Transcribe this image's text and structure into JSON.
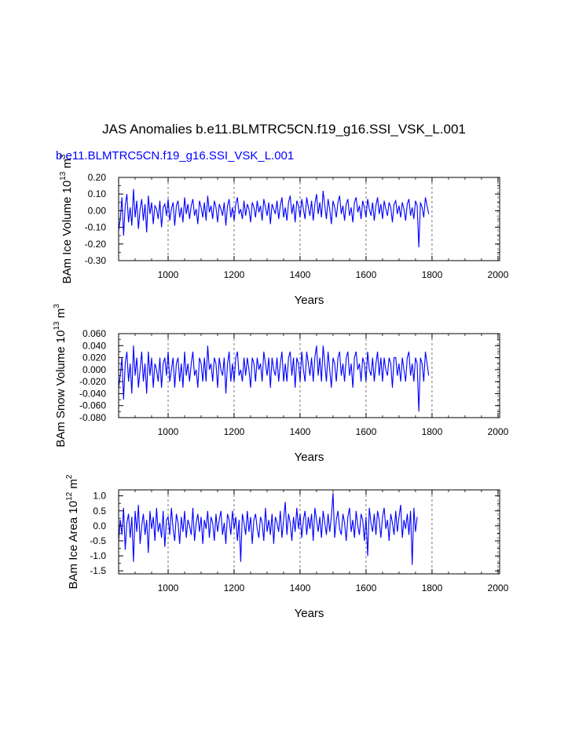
{
  "title": "JAS Anomalies b.e11.BLMTRC5CN.f19_g16.SSI_VSK_L.001",
  "case_label": "b.e11.BLMTRC5CN.f19_g16.SSI_VSK_L.001",
  "colors": {
    "series": "#0000ff",
    "axis": "#000000",
    "grid": "#555555",
    "case_label": "#0000ff"
  },
  "chart_data": [
    {
      "type": "line",
      "xlabel": "Years",
      "ylabel": "BAm Ice Volume 10^13 m^3",
      "ylabel_base": "BAm Ice Volume 10",
      "ylabel_exp1": "13",
      "ylabel_unit": " m",
      "ylabel_exp2": "3",
      "xlim": [
        850,
        2005
      ],
      "ylim": [
        -0.3,
        0.2
      ],
      "xticks": [
        1000,
        1200,
        1400,
        1600,
        1800,
        2000
      ],
      "xtick_labels": [
        "1000",
        "1200",
        "1400",
        "1600",
        "1800",
        "2000"
      ],
      "yticks": [
        -0.3,
        -0.2,
        -0.1,
        0.0,
        0.1,
        0.2
      ],
      "ytick_labels": [
        "-0.30",
        "-0.20",
        "-0.10",
        "0.00",
        "0.10",
        "0.20"
      ],
      "vgrid": [
        1000,
        1200,
        1400,
        1600,
        1800,
        2000
      ],
      "series": [
        {
          "x_start": 850,
          "x_step": 5,
          "values": [
            -0.12,
            -0.05,
            0.08,
            -0.15,
            0.03,
            0.1,
            -0.07,
            0.02,
            -0.09,
            0.13,
            -0.04,
            0.06,
            -0.11,
            0.01,
            0.07,
            -0.06,
            0.04,
            -0.13,
            0.09,
            -0.02,
            0.05,
            -0.08,
            0.03,
            0.01,
            -0.05,
            0.06,
            -0.1,
            0.02,
            0.04,
            -0.03,
            0.07,
            -0.06,
            0.01,
            0.05,
            -0.09,
            0.03,
            0.06,
            -0.04,
            0.02,
            -0.07,
            0.08,
            -0.02,
            0.04,
            -0.05,
            0.03,
            0.07,
            -0.03,
            0.01,
            -0.08,
            0.06,
            0.02,
            -0.04,
            0.05,
            -0.06,
            0.09,
            -0.01,
            0.03,
            -0.05,
            0.06,
            0.02,
            -0.07,
            0.04,
            0.01,
            -0.03,
            0.05,
            -0.09,
            0.03,
            0.07,
            -0.04,
            0.02,
            -0.06,
            0.04,
            0.08,
            -0.02,
            0.01,
            -0.05,
            0.06,
            -0.03,
            0.04,
            0.01,
            -0.07,
            0.05,
            0.02,
            -0.04,
            0.06,
            -0.01,
            0.03,
            -0.06,
            0.07,
            0.02,
            -0.03,
            0.05,
            -0.08,
            0.04,
            0.01,
            -0.02,
            0.06,
            -0.05,
            0.03,
            0.08,
            -0.04,
            0.02,
            -0.06,
            0.05,
            0.09,
            -0.02,
            0.04,
            -0.07,
            0.06,
            0.03,
            -0.04,
            0.07,
            0.01,
            -0.05,
            0.08,
            0.02,
            -0.03,
            0.06,
            -0.06,
            0.04,
            0.1,
            -0.02,
            0.05,
            -0.04,
            0.12,
            0.03,
            -0.05,
            0.07,
            0.01,
            -0.08,
            0.06,
            0.02,
            -0.04,
            0.05,
            0.09,
            -0.02,
            0.03,
            -0.06,
            0.04,
            0.07,
            -0.03,
            0.02,
            -0.07,
            0.05,
            0.08,
            -0.01,
            0.03,
            -0.05,
            0.06,
            0.02,
            -0.04,
            0.07,
            0.01,
            -0.03,
            0.05,
            -0.06,
            0.03,
            0.08,
            -0.02,
            0.04,
            -0.05,
            0.06,
            0.01,
            -0.03,
            0.05,
            0.02,
            -0.07,
            0.04,
            0.06,
            -0.02,
            0.03,
            -0.04,
            0.05,
            0.01,
            -0.06,
            0.04,
            0.07,
            -0.03,
            0.02,
            -0.05,
            0.06,
            0.03,
            -0.22,
            0.05,
            0.02,
            -0.04,
            0.08,
            0.03,
            -0.02
          ]
        }
      ]
    },
    {
      "type": "line",
      "xlabel": "Years",
      "ylabel": "BAm Snow Volume 10^13 m^3",
      "ylabel_base": "BAm Snow Volume 10",
      "ylabel_exp1": "13",
      "ylabel_unit": " m",
      "ylabel_exp2": "3",
      "xlim": [
        850,
        2005
      ],
      "ylim": [
        -0.08,
        0.06
      ],
      "xticks": [
        1000,
        1200,
        1400,
        1600,
        1800,
        2000
      ],
      "xtick_labels": [
        "1000",
        "1200",
        "1400",
        "1600",
        "1800",
        "2000"
      ],
      "yticks": [
        -0.08,
        -0.06,
        -0.04,
        -0.02,
        0.0,
        0.02,
        0.04,
        0.06
      ],
      "ytick_labels": [
        "-0.080",
        "-0.060",
        "-0.040",
        "-0.020",
        "0.000",
        "0.020",
        "0.040",
        "0.060"
      ],
      "vgrid": [
        1000,
        1200,
        1400,
        1600,
        1800,
        2000
      ],
      "series": [
        {
          "x_start": 850,
          "x_step": 5,
          "values": [
            -0.03,
            -0.01,
            0.02,
            -0.05,
            0.01,
            0.03,
            -0.02,
            0.01,
            -0.04,
            0.04,
            -0.01,
            0.02,
            -0.03,
            0.0,
            0.03,
            -0.02,
            0.01,
            -0.04,
            0.03,
            -0.01,
            0.02,
            -0.03,
            0.01,
            0.0,
            -0.02,
            0.02,
            -0.03,
            0.01,
            0.02,
            -0.01,
            0.03,
            -0.02,
            0.0,
            0.02,
            -0.03,
            0.01,
            0.02,
            -0.02,
            0.01,
            -0.03,
            0.03,
            -0.01,
            0.01,
            -0.02,
            0.01,
            0.03,
            -0.01,
            0.0,
            -0.03,
            0.02,
            0.01,
            -0.02,
            0.02,
            -0.02,
            0.04,
            0.0,
            0.01,
            -0.02,
            0.02,
            0.01,
            -0.03,
            0.02,
            0.0,
            -0.01,
            0.02,
            -0.04,
            0.01,
            0.03,
            -0.02,
            0.01,
            -0.02,
            0.02,
            0.03,
            -0.01,
            0.0,
            -0.02,
            0.02,
            -0.01,
            0.02,
            0.0,
            -0.03,
            0.02,
            0.01,
            -0.02,
            0.02,
            0.0,
            0.01,
            -0.02,
            0.03,
            0.01,
            -0.01,
            0.02,
            -0.03,
            0.02,
            0.0,
            -0.01,
            0.02,
            -0.02,
            0.01,
            0.03,
            -0.02,
            0.01,
            -0.02,
            0.02,
            0.03,
            -0.01,
            0.02,
            -0.03,
            0.02,
            0.01,
            -0.02,
            0.03,
            0.0,
            -0.02,
            0.03,
            0.01,
            -0.01,
            0.02,
            -0.02,
            0.02,
            0.04,
            -0.01,
            0.02,
            -0.02,
            0.04,
            0.01,
            -0.02,
            0.03,
            0.0,
            -0.03,
            0.02,
            0.01,
            -0.02,
            0.02,
            0.03,
            -0.01,
            0.01,
            -0.02,
            0.02,
            0.03,
            -0.01,
            0.01,
            -0.03,
            0.02,
            0.03,
            0.0,
            0.01,
            -0.02,
            0.02,
            0.01,
            -0.02,
            0.03,
            0.0,
            -0.01,
            0.02,
            -0.02,
            0.01,
            0.03,
            -0.01,
            0.02,
            -0.02,
            0.02,
            0.0,
            -0.01,
            0.02,
            0.01,
            -0.03,
            0.02,
            0.02,
            -0.01,
            0.01,
            -0.02,
            0.02,
            0.0,
            -0.02,
            0.02,
            0.03,
            -0.01,
            0.01,
            -0.02,
            0.02,
            0.01,
            -0.07,
            0.02,
            0.01,
            -0.02,
            0.03,
            0.01,
            -0.01
          ]
        }
      ]
    },
    {
      "type": "line",
      "xlabel": "Years",
      "ylabel": "BAm Ice Area 10^12 m^2",
      "ylabel_base": "BAm Ice Area 10",
      "ylabel_exp1": "12",
      "ylabel_unit": " m",
      "ylabel_exp2": "2",
      "xlim": [
        850,
        2005
      ],
      "ylim": [
        -1.6,
        1.2
      ],
      "xticks": [
        1000,
        1200,
        1400,
        1600,
        1800,
        2000
      ],
      "xtick_labels": [
        "1000",
        "1200",
        "1400",
        "1600",
        "1800",
        "2000"
      ],
      "yticks": [
        -1.5,
        -1.0,
        -0.5,
        0.0,
        0.5,
        1.0
      ],
      "ytick_labels": [
        "-1.5",
        "-1.0",
        "-0.5",
        "0.0",
        "0.5",
        "1.0"
      ],
      "vgrid": [
        1000,
        1200,
        1400,
        1600,
        1800,
        2000
      ],
      "series": [
        {
          "x_start": 850,
          "x_step": 5,
          "values": [
            -0.5,
            0.2,
            -0.3,
            0.6,
            -0.8,
            0.1,
            0.4,
            -0.4,
            0.3,
            -1.2,
            0.5,
            -0.2,
            0.7,
            -0.6,
            0.0,
            0.4,
            -0.3,
            0.2,
            -0.9,
            0.5,
            -0.1,
            0.3,
            -0.5,
            0.6,
            -0.2,
            0.1,
            -0.4,
            0.5,
            -0.7,
            0.2,
            0.3,
            -0.3,
            0.6,
            -0.1,
            -0.5,
            0.4,
            0.1,
            -0.6,
            0.3,
            -0.2,
            0.5,
            -0.4,
            0.2,
            0.0,
            -0.3,
            0.6,
            -0.5,
            0.1,
            0.4,
            -0.2,
            0.3,
            -0.6,
            0.2,
            -0.1,
            0.5,
            -0.4,
            0.3,
            0.1,
            -0.5,
            0.4,
            -0.2,
            0.2,
            0.5,
            -0.3,
            0.1,
            -0.6,
            0.4,
            0.2,
            -0.3,
            0.5,
            -0.1,
            0.3,
            -0.5,
            0.2,
            -1.2,
            0.4,
            0.1,
            -0.3,
            0.5,
            -0.2,
            0.3,
            -0.6,
            0.2,
            0.4,
            -0.1,
            -0.4,
            0.3,
            0.1,
            -0.5,
            0.6,
            -0.2,
            0.2,
            -0.3,
            0.4,
            -0.6,
            0.3,
            0.1,
            -0.2,
            0.5,
            -0.4,
            0.2,
            0.8,
            -0.3,
            0.4,
            0.1,
            -0.5,
            0.3,
            -0.2,
            0.6,
            -0.1,
            0.4,
            -0.4,
            0.2,
            0.5,
            -0.3,
            0.3,
            -0.1,
            0.4,
            -0.5,
            0.6,
            0.2,
            -0.2,
            0.3,
            -0.4,
            0.5,
            0.1,
            -0.3,
            0.4,
            -0.2,
            0.3,
            1.1,
            -0.4,
            0.2,
            0.5,
            -0.1,
            -0.3,
            0.4,
            0.1,
            -0.5,
            0.3,
            0.6,
            -0.2,
            0.2,
            -0.4,
            0.5,
            0.0,
            -0.3,
            0.4,
            0.2,
            -0.5,
            0.3,
            -1.0,
            0.6,
            0.1,
            -0.2,
            0.4,
            -0.3,
            0.5,
            0.2,
            -0.4,
            0.3,
            0.6,
            -0.1,
            0.2,
            -0.5,
            0.4,
            0.1,
            -0.3,
            0.5,
            -0.2,
            0.3,
            0.7,
            -0.4,
            0.2,
            -0.1,
            0.4,
            -0.3,
            0.5,
            -1.3,
            0.6,
            -0.2,
            0.3
          ]
        }
      ]
    }
  ]
}
